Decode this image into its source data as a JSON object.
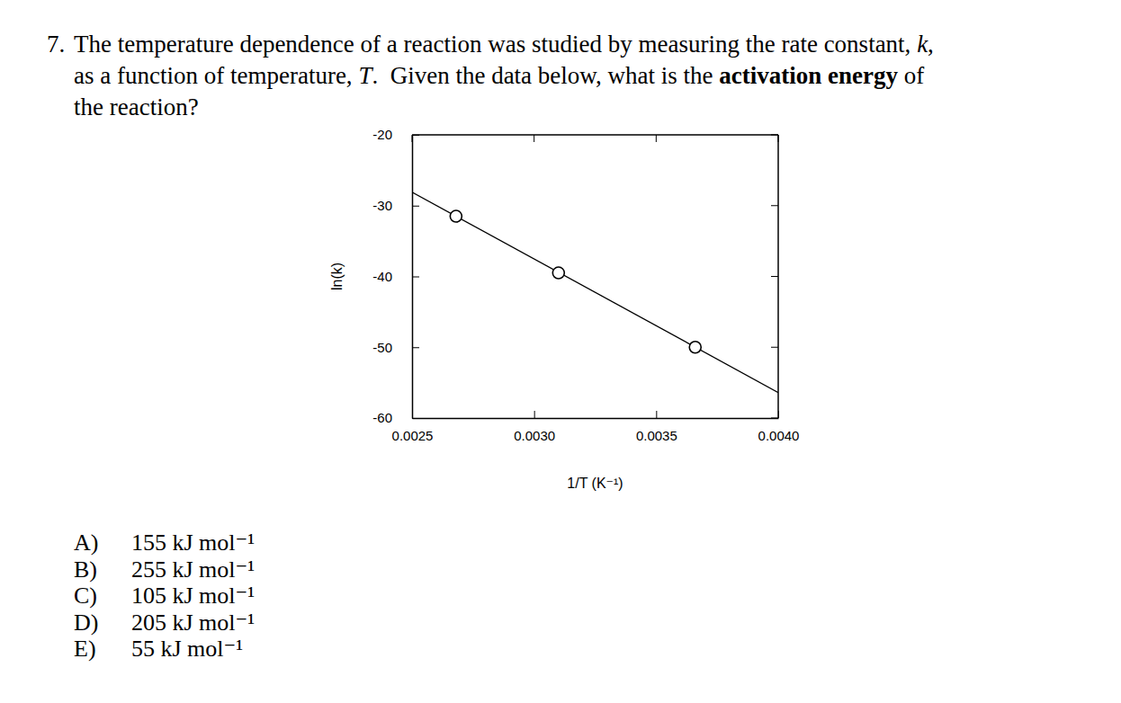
{
  "question": {
    "number": "7.",
    "lines": [
      [
        {
          "text": "The temperature dependence of a reaction was studied by measuring the rate constant, "
        },
        {
          "text": "k",
          "style": "italic"
        },
        {
          "text": ","
        }
      ],
      [
        {
          "text": "as a function of temperature, "
        },
        {
          "text": "T",
          "style": "italic"
        },
        {
          "text": ".  Given the data below, what is the "
        },
        {
          "text": "activation energy",
          "style": "bold"
        },
        {
          "text": " of"
        }
      ],
      [
        {
          "text": "the reaction?"
        }
      ]
    ]
  },
  "choices": [
    {
      "label": "A)",
      "text": "155 kJ mol⁻¹"
    },
    {
      "label": "B)",
      "text": "255 kJ mol⁻¹"
    },
    {
      "label": "C)",
      "text": "105 kJ mol⁻¹"
    },
    {
      "label": "D)",
      "text": "205 kJ mol⁻¹"
    },
    {
      "label": "E)",
      "text": "55 kJ mol⁻¹"
    }
  ],
  "chart_data": {
    "type": "scatter",
    "xlabel": "1/T (K⁻¹)",
    "ylabel": "ln(k)",
    "xlim": [
      0.0025,
      0.004
    ],
    "ylim": [
      -60,
      -20
    ],
    "xticks": [
      0.0025,
      {
        "value": 0.003,
        "label": "0.0030"
      },
      0.0035,
      {
        "value": 0.004,
        "label": "0.0040"
      }
    ],
    "yticks": [
      -60,
      -50,
      -40,
      -30,
      -20
    ],
    "grid": false,
    "series": [
      {
        "type": "scatter",
        "marker": "circle",
        "color": "#000000",
        "x": [
          0.00268,
          0.0031,
          0.00366
        ],
        "values": [
          -31.5,
          -39.5,
          -50
        ]
      },
      {
        "type": "line",
        "line_style": "solid",
        "color": "#000000",
        "x": [
          0.0025,
          0.004
        ],
        "values": [
          -28.1,
          -56.4
        ]
      }
    ]
  }
}
